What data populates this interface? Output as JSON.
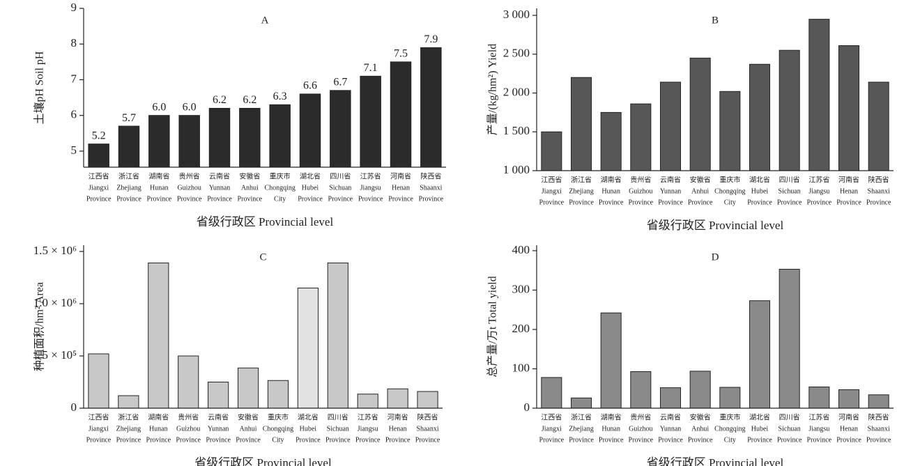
{
  "chart_data": [
    {
      "type": "bar",
      "title": "A",
      "y_label": "土壤pH Soil pH",
      "x_label": "省级行政区 Provincial level",
      "categories": [
        [
          "江西省",
          "Jiangxi",
          "Province"
        ],
        [
          "浙江省",
          "Zhejiang",
          "Province"
        ],
        [
          "湖南省",
          "Hunan",
          "Province"
        ],
        [
          "贵州省",
          "Guizhou",
          "Province"
        ],
        [
          "云南省",
          "Yunnan",
          "Province"
        ],
        [
          "安徽省",
          "Anhui",
          "Province"
        ],
        [
          "重庆市",
          "Chongqing",
          "City"
        ],
        [
          "湖北省",
          "Hubei",
          "Province"
        ],
        [
          "四川省",
          "Sichuan",
          "Province"
        ],
        [
          "江苏省",
          "Jiangsu",
          "Province"
        ],
        [
          "河南省",
          "Henan",
          "Province"
        ],
        [
          "陕西省",
          "Shaanxi",
          "Province"
        ]
      ],
      "values": [
        5.2,
        5.7,
        6.0,
        6.0,
        6.2,
        6.2,
        6.3,
        6.6,
        6.7,
        7.1,
        7.5,
        7.9
      ],
      "value_labels": [
        "5.2",
        "5.7",
        "6.0",
        "6.0",
        "6.2",
        "6.2",
        "6.3",
        "6.6",
        "6.7",
        "7.1",
        "7.5",
        "7.9"
      ],
      "color": "#2b2b2b",
      "ylim": [
        4.55,
        9
      ],
      "yticks": [
        5,
        6,
        7,
        8,
        9
      ]
    },
    {
      "type": "bar",
      "title": "B",
      "y_label": "产量/(kg/hm²) Yield",
      "x_label": "省级行政区 Provincial level",
      "categories": [
        [
          "江西省",
          "Jiangxi",
          "Province"
        ],
        [
          "浙江省",
          "Zhejiang",
          "Province"
        ],
        [
          "湖南省",
          "Hunan",
          "Province"
        ],
        [
          "贵州省",
          "Guizhou",
          "Province"
        ],
        [
          "云南省",
          "Yunnan",
          "Province"
        ],
        [
          "安徽省",
          "Anhui",
          "Province"
        ],
        [
          "重庆市",
          "Chongqing",
          "City"
        ],
        [
          "湖北省",
          "Hubei",
          "Province"
        ],
        [
          "四川省",
          "Sichuan",
          "Province"
        ],
        [
          "江苏省",
          "Jiangsu",
          "Province"
        ],
        [
          "河南省",
          "Henan",
          "Province"
        ],
        [
          "陕西省",
          "Shaanxi",
          "Province"
        ]
      ],
      "values": [
        1500,
        2200,
        1750,
        1860,
        2140,
        2450,
        2020,
        2370,
        2550,
        2950,
        2610,
        2140
      ],
      "color": "#575757",
      "ylim": [
        1000,
        3090
      ],
      "yticks": [
        {
          "value": 1000,
          "label": "1 000"
        },
        {
          "value": 1500,
          "label": "1 500"
        },
        {
          "value": 2000,
          "label": "2 000"
        },
        {
          "value": 2500,
          "label": "2 500"
        },
        {
          "value": 3000,
          "label": "3 000"
        }
      ]
    },
    {
      "type": "bar",
      "title": "C",
      "y_label": "种植面积/hm² Area",
      "x_label": "省级行政区 Provincial level",
      "categories": [
        [
          "江西省",
          "Jiangxi",
          "Province"
        ],
        [
          "浙江省",
          "Zhejiang",
          "Province"
        ],
        [
          "湖南省",
          "Hunan",
          "Province"
        ],
        [
          "贵州省",
          "Guizhou",
          "Province"
        ],
        [
          "云南省",
          "Yunnan",
          "Province"
        ],
        [
          "安徽省",
          "Anhui",
          "Province"
        ],
        [
          "重庆市",
          "Chongqing",
          "City"
        ],
        [
          "湖北省",
          "Hubei",
          "Province"
        ],
        [
          "四川省",
          "Sichuan",
          "Province"
        ],
        [
          "江苏省",
          "Jiangsu",
          "Province"
        ],
        [
          "河南省",
          "Henan",
          "Province"
        ],
        [
          "陕西省",
          "Shaanxi",
          "Province"
        ]
      ],
      "values": [
        520000,
        120000,
        1390000,
        500000,
        250000,
        385000,
        265000,
        1150000,
        1390000,
        135000,
        185000,
        160000
      ],
      "colors": [
        "#c8c8c8",
        "#c8c8c8",
        "#c8c8c8",
        "#c8c8c8",
        "#c8c8c8",
        "#c8c8c8",
        "#c8c8c8",
        "#e2e2e2",
        "#c8c8c8",
        "#c8c8c8",
        "#c8c8c8",
        "#c8c8c8"
      ],
      "ylim": [
        0,
        1560000
      ],
      "yticks": [
        0,
        {
          "value": 500000,
          "label": "5 × 10⁵"
        },
        {
          "value": 1000000,
          "label": "1.0 × 10⁶"
        },
        {
          "value": 1500000,
          "label": "1.5 × 10⁶"
        }
      ]
    },
    {
      "type": "bar",
      "title": "D",
      "y_label": "总产量/万t  Total yield",
      "x_label": "省级行政区 Provincial level",
      "categories": [
        [
          "江西省",
          "Jiangxi",
          "Province"
        ],
        [
          "浙江省",
          "Zhejiang",
          "Province"
        ],
        [
          "湖南省",
          "Hunan",
          "Province"
        ],
        [
          "贵州省",
          "Guizhou",
          "Province"
        ],
        [
          "云南省",
          "Yunnan",
          "Province"
        ],
        [
          "安徽省",
          "Anhui",
          "Province"
        ],
        [
          "重庆市",
          "Chongqing",
          "City"
        ],
        [
          "湖北省",
          "Hubei",
          "Province"
        ],
        [
          "四川省",
          "Sichuan",
          "Province"
        ],
        [
          "江苏省",
          "Jiangsu",
          "Province"
        ],
        [
          "河南省",
          "Henan",
          "Province"
        ],
        [
          "陕西省",
          "Shaanxi",
          "Province"
        ]
      ],
      "values": [
        78,
        26,
        242,
        93,
        52,
        94,
        53,
        273,
        353,
        54,
        47,
        34
      ],
      "color": "#8a8a8a",
      "ylim": [
        0,
        414
      ],
      "yticks": [
        0,
        100,
        200,
        300,
        400
      ]
    }
  ]
}
